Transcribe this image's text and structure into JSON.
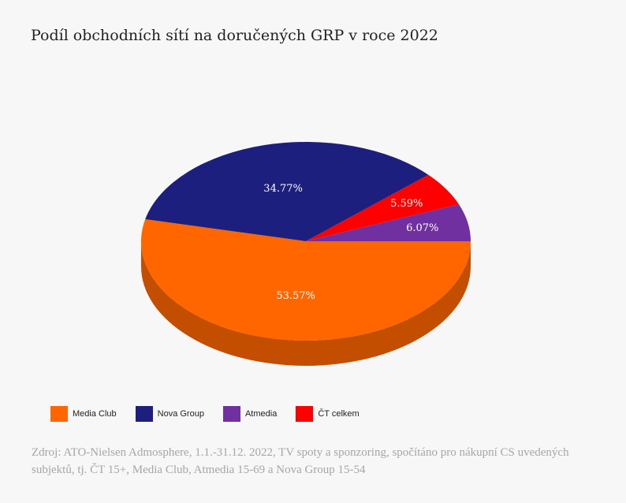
{
  "chart_data": {
    "type": "pie",
    "title": "Podíl obchodních sítí na doručených GRP v roce 2022",
    "slices": [
      {
        "name": "Media Club",
        "value": 53.57,
        "label": "53.57%",
        "color": "#ff6600",
        "side_color": "#c44e00"
      },
      {
        "name": "Nova Group",
        "value": 34.77,
        "label": "34.77%",
        "color": "#1c1f7d",
        "side_color": "#121458"
      },
      {
        "name": "ČT celkem",
        "value": 5.59,
        "label": "5.59%",
        "color": "#ff0000",
        "side_color": "#b30000"
      },
      {
        "name": "Atmedia",
        "value": 6.07,
        "label": "6.07%",
        "color": "#7030a0",
        "side_color": "#4e2170"
      }
    ],
    "legend": [
      {
        "name": "Media Club",
        "color": "#ff6600"
      },
      {
        "name": "Nova Group",
        "color": "#1c1f7d"
      },
      {
        "name": "Atmedia",
        "color": "#7030a0"
      },
      {
        "name": "ČT celkem",
        "color": "#ff0000"
      }
    ],
    "legend_position": "bottom-left"
  },
  "source_text": "Zdroj: ATO-Nielsen Admosphere, 1.1.-31.12. 2022, TV spoty a sponzoring, spočítáno pro nákupní CS uvedených subjektů, tj. ČT 15+, Media Club, Atmedia 15-69 a Nova Group 15-54"
}
